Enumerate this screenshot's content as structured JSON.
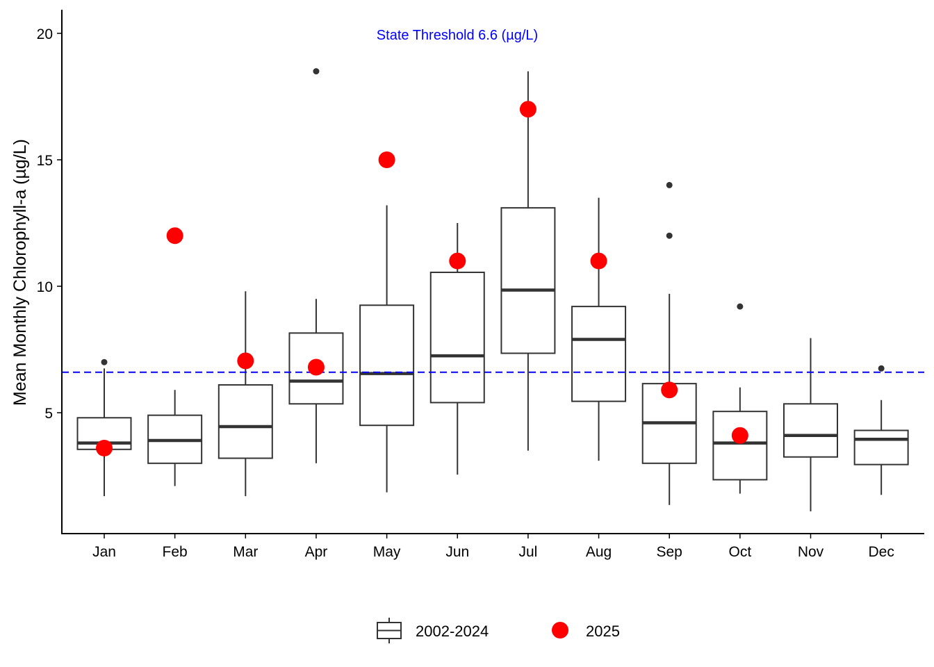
{
  "chart_data": {
    "type": "boxplot",
    "title": "",
    "xlabel": "",
    "ylabel": "Mean Monthly Chlorophyll-a (µg/L)",
    "categories": [
      "Jan",
      "Feb",
      "Mar",
      "Apr",
      "May",
      "Jun",
      "Jul",
      "Aug",
      "Sep",
      "Oct",
      "Nov",
      "Dec"
    ],
    "ylim": [
      0,
      21
    ],
    "yticks": [
      5,
      10,
      15,
      20
    ],
    "grid": false,
    "legend_position": "bottom",
    "series": [
      {
        "name": "2002-2024",
        "kind": "boxplot",
        "color": "#333333",
        "boxes": [
          {
            "month": "Jan",
            "whisker_low": 1.7,
            "q1": 3.55,
            "median": 3.8,
            "q3": 4.8,
            "whisker_high": 6.75,
            "outliers": [
              7.0
            ]
          },
          {
            "month": "Feb",
            "whisker_low": 2.1,
            "q1": 3.0,
            "median": 3.9,
            "q3": 4.9,
            "whisker_high": 5.9,
            "outliers": []
          },
          {
            "month": "Mar",
            "whisker_low": 1.7,
            "q1": 3.2,
            "median": 4.45,
            "q3": 6.1,
            "whisker_high": 9.8,
            "outliers": []
          },
          {
            "month": "Apr",
            "whisker_low": 3.0,
            "q1": 5.35,
            "median": 6.25,
            "q3": 8.15,
            "whisker_high": 9.5,
            "outliers": [
              18.5
            ]
          },
          {
            "month": "May",
            "whisker_low": 1.85,
            "q1": 4.5,
            "median": 6.55,
            "q3": 9.25,
            "whisker_high": 13.2,
            "outliers": []
          },
          {
            "month": "Jun",
            "whisker_low": 2.55,
            "q1": 5.4,
            "median": 7.25,
            "q3": 10.55,
            "whisker_high": 12.5,
            "outliers": []
          },
          {
            "month": "Jul",
            "whisker_low": 3.5,
            "q1": 7.35,
            "median": 9.85,
            "q3": 13.1,
            "whisker_high": 18.5,
            "outliers": []
          },
          {
            "month": "Aug",
            "whisker_low": 3.1,
            "q1": 5.45,
            "median": 7.9,
            "q3": 9.2,
            "whisker_high": 13.5,
            "outliers": []
          },
          {
            "month": "Sep",
            "whisker_low": 1.35,
            "q1": 3.0,
            "median": 4.6,
            "q3": 6.15,
            "whisker_high": 9.7,
            "outliers": [
              12.0,
              14.0
            ]
          },
          {
            "month": "Oct",
            "whisker_low": 1.8,
            "q1": 2.35,
            "median": 3.8,
            "q3": 5.05,
            "whisker_high": 6.0,
            "outliers": [
              9.2
            ]
          },
          {
            "month": "Nov",
            "whisker_low": 1.1,
            "q1": 3.25,
            "median": 4.1,
            "q3": 5.35,
            "whisker_high": 7.95,
            "outliers": []
          },
          {
            "month": "Dec",
            "whisker_low": 1.75,
            "q1": 2.95,
            "median": 3.95,
            "q3": 4.3,
            "whisker_high": 5.5,
            "outliers": [
              6.75
            ]
          }
        ]
      },
      {
        "name": "2025",
        "kind": "point",
        "color": "#ff0000",
        "values": [
          3.6,
          12.0,
          7.05,
          6.8,
          15.0,
          11.0,
          17.0,
          11.0,
          5.9,
          4.1,
          null,
          null
        ]
      }
    ],
    "reference_line": {
      "value": 6.6,
      "style": "dashed",
      "color": "#0000ff",
      "label": "State Threshold 6.6 (µg/L)"
    },
    "legend": [
      {
        "label": "2002-2024",
        "symbol": "box"
      },
      {
        "label": "2025",
        "symbol": "point"
      }
    ]
  }
}
